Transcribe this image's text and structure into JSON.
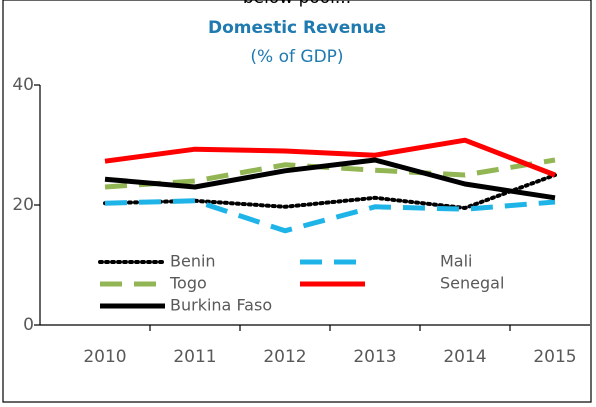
{
  "chart_data": {
    "type": "line",
    "caption_above": "below pool...",
    "title": "Domestic Revenue",
    "subtitle": "(% of GDP)",
    "categories": [
      "2010",
      "2011",
      "2012",
      "2013",
      "2014",
      "2015"
    ],
    "series": [
      {
        "name": "Benin",
        "color": "#000000",
        "style": "dotted",
        "values": [
          20.3,
          20.7,
          19.7,
          21.2,
          19.5,
          25
        ]
      },
      {
        "name": "Mali",
        "color": "#1fb4e8",
        "style": "dashed",
        "values": [
          20.3,
          20.7,
          15.7,
          19.7,
          19.3,
          20.5
        ]
      },
      {
        "name": "Togo",
        "color": "#92b653",
        "style": "dashed",
        "values": [
          23,
          24,
          26.7,
          25.8,
          25,
          27.5
        ]
      },
      {
        "name": "Senegal",
        "color": "#ff0000",
        "style": "solid",
        "values": [
          27.3,
          29.3,
          29,
          28.3,
          30.8,
          25
        ]
      },
      {
        "name": "Burkina Faso",
        "color": "#000000",
        "style": "solid",
        "values": [
          24.3,
          23,
          25.7,
          27.5,
          23.5,
          21.2
        ]
      }
    ],
    "ylim": [
      0,
      40
    ],
    "yticks": [
      0,
      20,
      40
    ],
    "grid": false
  }
}
